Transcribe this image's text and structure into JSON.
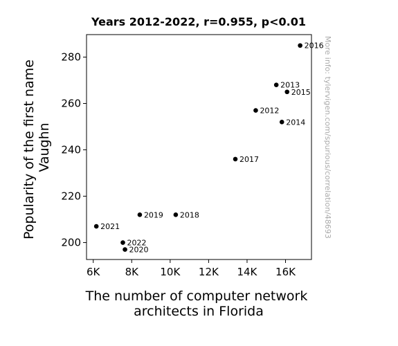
{
  "chart_data": {
    "type": "scatter",
    "title": "Years 2012-2022, r=0.955, p<0.01",
    "xlabel": [
      "The number of computer network",
      "architects in Florida"
    ],
    "ylabel": [
      "Popularity of the first name",
      "Vaughn"
    ],
    "xlim": [
      5650,
      17350
    ],
    "ylim": [
      192.7,
      289.7
    ],
    "xticks": [
      6000,
      8000,
      10000,
      12000,
      14000,
      16000
    ],
    "xtick_labels": [
      "6K",
      "8K",
      "10K",
      "12K",
      "14K",
      "16K"
    ],
    "yticks": [
      200,
      220,
      240,
      260,
      280
    ],
    "ytick_labels": [
      "200",
      "220",
      "240",
      "260",
      "280"
    ],
    "grid": false,
    "points": [
      {
        "label": "2012",
        "x": 14450,
        "y": 257
      },
      {
        "label": "2013",
        "x": 15520,
        "y": 268
      },
      {
        "label": "2014",
        "x": 15810,
        "y": 252
      },
      {
        "label": "2015",
        "x": 16080,
        "y": 265
      },
      {
        "label": "2016",
        "x": 16760,
        "y": 285
      },
      {
        "label": "2017",
        "x": 13390,
        "y": 236
      },
      {
        "label": "2018",
        "x": 10290,
        "y": 212
      },
      {
        "label": "2019",
        "x": 8420,
        "y": 212
      },
      {
        "label": "2020",
        "x": 7650,
        "y": 197
      },
      {
        "label": "2021",
        "x": 6160,
        "y": 207
      },
      {
        "label": "2022",
        "x": 7540,
        "y": 200
      }
    ],
    "watermark": "More info: tylervigen.com/spurious/correlation/48693",
    "colors": {
      "points": "#000000",
      "axes": "#000000",
      "watermark": "#aaaaaa"
    }
  }
}
